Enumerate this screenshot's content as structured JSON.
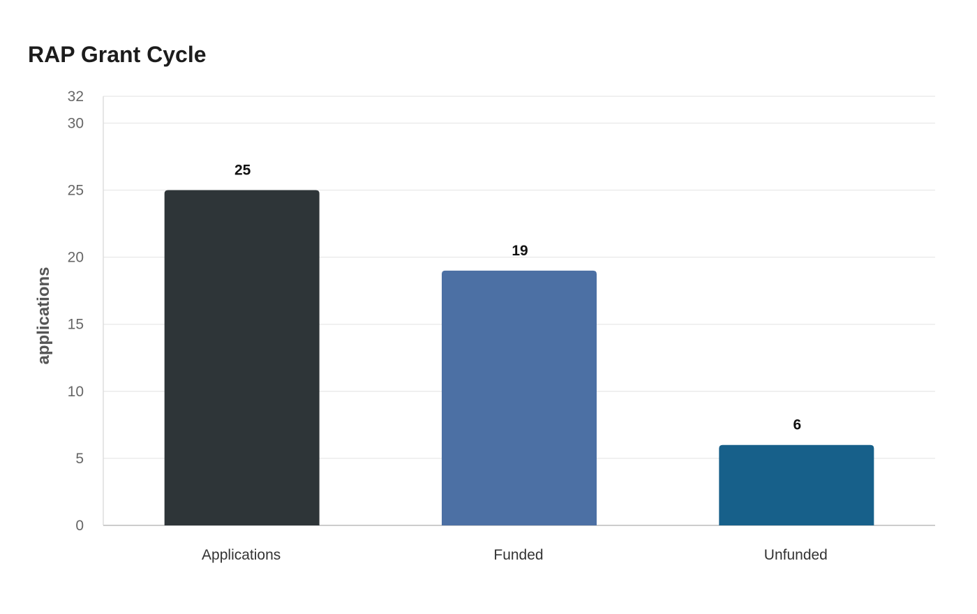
{
  "chart_data": {
    "type": "bar",
    "title": "RAP Grant Cycle",
    "ylabel": "applications",
    "xlabel": "",
    "categories": [
      "Applications",
      "Funded",
      "Unfunded"
    ],
    "values": [
      25,
      19,
      6
    ],
    "colors": [
      "#2e3538",
      "#4c70a4",
      "#17608a"
    ],
    "ylim": [
      0,
      32
    ],
    "yticks": [
      0,
      5,
      10,
      15,
      20,
      25,
      30,
      32
    ],
    "grid": true,
    "data_labels": true
  }
}
